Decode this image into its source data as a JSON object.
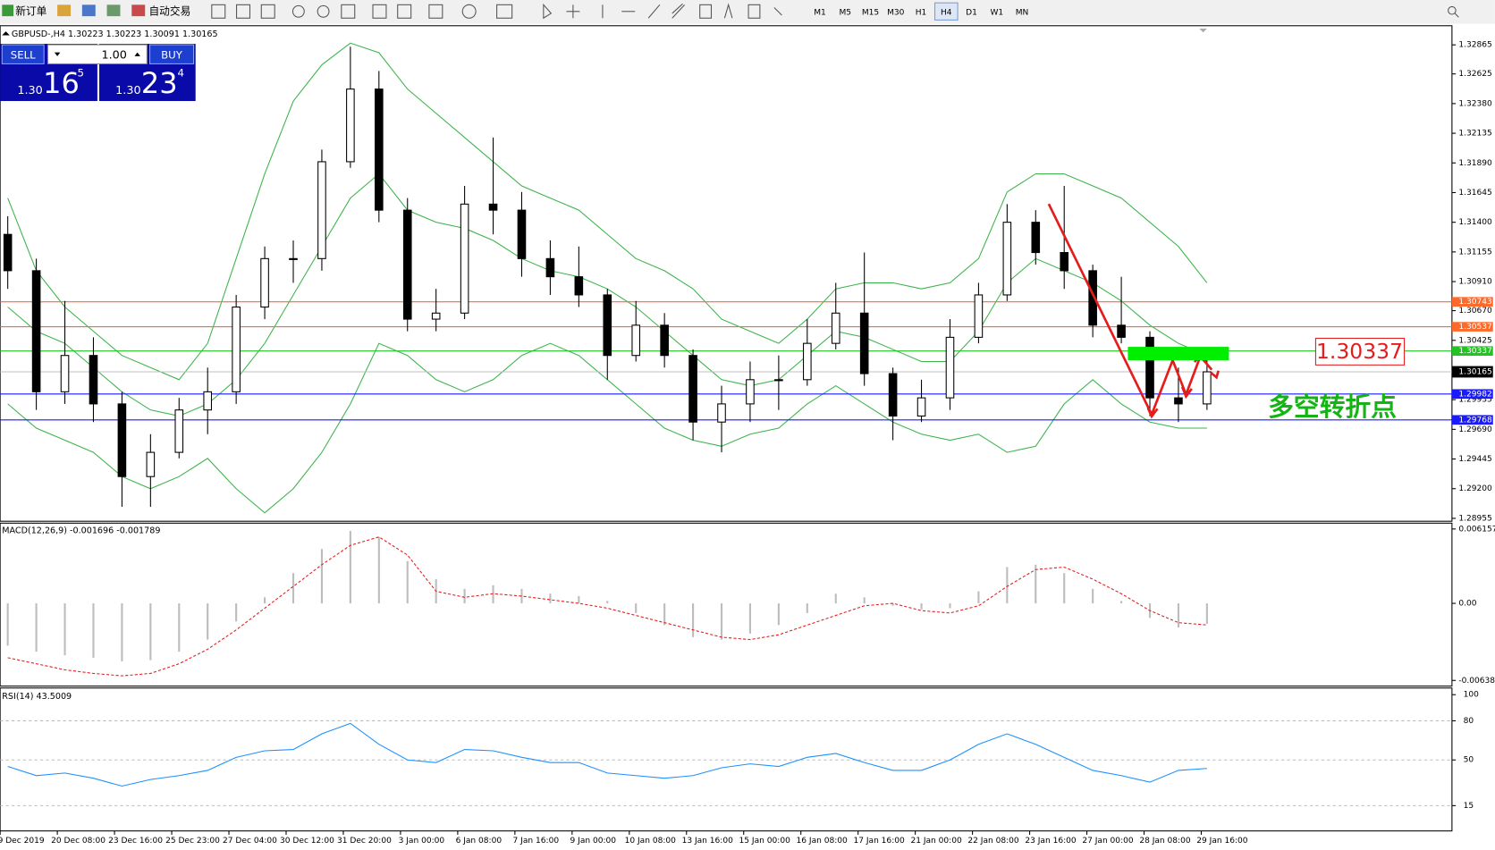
{
  "toolbar": {
    "new_order": "新订单",
    "auto_trade": "自动交易",
    "timeframes": [
      "M1",
      "M5",
      "M15",
      "M30",
      "H1",
      "H4",
      "D1",
      "W1",
      "MN"
    ],
    "selected": "H4"
  },
  "trade_panel": {
    "sell": "SELL",
    "buy": "BUY",
    "lot": "1.00",
    "sell_price": {
      "prefix": "1.30",
      "big": "16",
      "small": "5"
    },
    "buy_price": {
      "prefix": "1.30",
      "big": "23",
      "small": "4"
    }
  },
  "chart": {
    "header": "GBPUSD-,H4  1.30223 1.30223 1.30091 1.30165",
    "ylim": [
      1.28931,
      1.33023
    ],
    "yticks": [
      1.32865,
      1.32625,
      {
        "value": 1.3238,
        "label": "1.32380"
      },
      1.32135,
      {
        "value": 1.3189,
        "label": "1.31890"
      },
      1.31645,
      {
        "value": 1.314,
        "label": "1.31400"
      },
      1.31155,
      {
        "value": 1.3091,
        "label": "1.30910"
      },
      {
        "value": 1.3067,
        "label": "1.30670"
      },
      1.30425,
      1.29935,
      {
        "value": 1.2969,
        "label": "1.29690"
      },
      1.29445,
      {
        "value": 1.292,
        "label": "1.29200"
      },
      1.28955
    ],
    "levels": [
      {
        "value": 1.30743,
        "color": "#ff6a2a"
      },
      {
        "value": 1.30537,
        "color": "#ff6a2a"
      },
      {
        "value": 1.30337,
        "color": "#22c322"
      },
      {
        "value": 1.29982,
        "color": "#1a1aff"
      },
      {
        "value": 1.29768,
        "color": "#1a1aff"
      }
    ],
    "current_price": 1.30165,
    "candles": {
      "open": [
        1.313,
        1.31,
        1.3,
        1.303,
        1.299,
        1.293,
        1.295,
        1.2985,
        1.3,
        1.307,
        1.311,
        1.311,
        1.319,
        1.325,
        1.315,
        1.306,
        1.3065,
        1.3155,
        1.315,
        1.311,
        1.3095,
        1.308,
        1.303,
        1.3055,
        1.303,
        1.2975,
        1.299,
        1.301,
        1.301,
        1.304,
        1.3065,
        1.3015,
        1.298,
        1.2995,
        1.3045,
        1.308,
        1.314,
        1.3115,
        1.31,
        1.3055,
        1.3045,
        1.2995,
        1.299
      ],
      "high": [
        1.3145,
        1.311,
        1.3075,
        1.3045,
        1.3,
        1.2965,
        1.2995,
        1.302,
        1.308,
        1.312,
        1.3125,
        1.32,
        1.3285,
        1.3265,
        1.316,
        1.3085,
        1.317,
        1.321,
        1.3165,
        1.3125,
        1.312,
        1.3085,
        1.3075,
        1.3065,
        1.3035,
        1.3005,
        1.3025,
        1.303,
        1.306,
        1.309,
        1.3115,
        1.302,
        1.301,
        1.306,
        1.309,
        1.3155,
        1.315,
        1.317,
        1.3105,
        1.3095,
        1.305,
        1.302,
        1.303
      ],
      "low": [
        1.3085,
        1.2985,
        1.299,
        1.2975,
        1.2905,
        1.2905,
        1.2945,
        1.2965,
        1.299,
        1.306,
        1.309,
        1.31,
        1.3185,
        1.314,
        1.305,
        1.305,
        1.306,
        1.313,
        1.3095,
        1.308,
        1.307,
        1.301,
        1.3025,
        1.302,
        1.296,
        1.295,
        1.2975,
        1.2985,
        1.3005,
        1.3035,
        1.3005,
        1.296,
        1.2975,
        1.2985,
        1.304,
        1.3075,
        1.3105,
        1.3085,
        1.3045,
        1.304,
        1.298,
        1.2975,
        1.2985
      ],
      "close": [
        1.31,
        1.3,
        1.303,
        1.299,
        1.293,
        1.295,
        1.2985,
        1.3,
        1.307,
        1.311,
        1.311,
        1.319,
        1.325,
        1.315,
        1.306,
        1.3065,
        1.3155,
        1.315,
        1.311,
        1.3095,
        1.308,
        1.303,
        1.3055,
        1.303,
        1.2975,
        1.299,
        1.301,
        1.301,
        1.304,
        1.3065,
        1.3015,
        1.298,
        1.2995,
        1.3045,
        1.308,
        1.314,
        1.3115,
        1.31,
        1.3055,
        1.3045,
        1.2995,
        1.299,
        1.30165
      ]
    },
    "bands": {
      "color": "#3cb44b",
      "upper": [
        1.316,
        1.31,
        1.307,
        1.305,
        1.303,
        1.302,
        1.301,
        1.304,
        1.311,
        1.318,
        1.324,
        1.327,
        1.3288,
        1.328,
        1.325,
        1.323,
        1.321,
        1.319,
        1.317,
        1.316,
        1.315,
        1.313,
        1.311,
        1.31,
        1.3085,
        1.306,
        1.305,
        1.304,
        1.306,
        1.3085,
        1.309,
        1.309,
        1.3085,
        1.309,
        1.311,
        1.3165,
        1.318,
        1.318,
        1.317,
        1.316,
        1.314,
        1.312,
        1.309
      ],
      "middle": [
        1.307,
        1.305,
        1.304,
        1.302,
        1.3,
        1.2985,
        1.298,
        1.299,
        1.301,
        1.304,
        1.308,
        1.312,
        1.316,
        1.318,
        1.315,
        1.314,
        1.3135,
        1.3125,
        1.311,
        1.31,
        1.3095,
        1.3085,
        1.307,
        1.305,
        1.303,
        1.301,
        1.3005,
        1.301,
        1.303,
        1.305,
        1.3045,
        1.3035,
        1.3025,
        1.3025,
        1.305,
        1.309,
        1.311,
        1.31,
        1.309,
        1.3075,
        1.3055,
        1.304,
        1.303
      ],
      "lower": [
        1.299,
        1.297,
        1.296,
        1.295,
        1.293,
        1.292,
        1.293,
        1.2945,
        1.292,
        1.29,
        1.292,
        1.295,
        1.299,
        1.304,
        1.303,
        1.301,
        1.3,
        1.301,
        1.303,
        1.304,
        1.303,
        1.301,
        1.299,
        1.297,
        1.296,
        1.2955,
        1.2965,
        1.297,
        1.299,
        1.3005,
        1.299,
        1.2975,
        1.2965,
        1.296,
        1.2965,
        1.295,
        1.2955,
        1.299,
        1.301,
        1.299,
        1.2975,
        1.297,
        1.297
      ]
    },
    "annotation_price": "1.30337",
    "annotation_text": "多空转折点",
    "time_labels": [
      "9 Dec 2019",
      "20 Dec 08:00",
      "23 Dec 16:00",
      "25 Dec 23:00",
      "27 Dec 04:00",
      "30 Dec 12:00",
      "31 Dec 20:00",
      "3 Jan 00:00",
      "6 Jan 08:00",
      "7 Jan 16:00",
      "9 Jan 00:00",
      "10 Jan 08:00",
      "13 Jan 16:00",
      "15 Jan 00:00",
      "16 Jan 08:00",
      "17 Jan 16:00",
      "21 Jan 00:00",
      "22 Jan 08:00",
      "23 Jan 16:00",
      "27 Jan 00:00",
      "28 Jan 08:00",
      "29 Jan 16:00"
    ]
  },
  "macd": {
    "label": "MACD(12,26,9) -0.001696 -0.001789",
    "ylim": [
      -0.00685,
      0.00664
    ],
    "yticks": [
      0.006157,
      {
        "value": 0,
        "label": "0.00"
      },
      -0.00638
    ],
    "histogram": [
      -0.0035,
      -0.004,
      -0.0043,
      -0.0045,
      -0.0048,
      -0.0047,
      -0.004,
      -0.003,
      -0.0015,
      0.0005,
      0.0025,
      0.0045,
      0.006,
      0.0055,
      0.0035,
      0.002,
      0.0012,
      0.0015,
      0.0012,
      0.0008,
      0.0006,
      0.0002,
      -0.0008,
      -0.0018,
      -0.0028,
      -0.003,
      -0.0025,
      -0.0018,
      -0.0008,
      0.0008,
      0.0005,
      -0.0002,
      -0.0005,
      -0.0004,
      0.001,
      0.003,
      0.0032,
      0.0025,
      0.0012,
      0.0002,
      -0.0012,
      -0.002,
      -0.001696
    ],
    "signal": [
      -0.0045,
      -0.005,
      -0.0055,
      -0.0058,
      -0.006,
      -0.0058,
      -0.005,
      -0.0038,
      -0.0022,
      -0.0004,
      0.0014,
      0.0032,
      0.0048,
      0.0055,
      0.004,
      0.001,
      0.0005,
      0.0008,
      0.0006,
      0.0003,
      0.0,
      -0.0004,
      -0.001,
      -0.0016,
      -0.0022,
      -0.0028,
      -0.003,
      -0.0026,
      -0.0018,
      -0.001,
      -0.0002,
      0.0,
      -0.0006,
      -0.0008,
      -0.0002,
      0.0014,
      0.0028,
      0.003,
      0.002,
      0.0008,
      -0.0006,
      -0.0016,
      -0.001789
    ]
  },
  "rsi": {
    "label": "RSI(14) 43.5009",
    "ylim": [
      0,
      100
    ],
    "yticks": [
      100,
      80,
      50,
      15
    ],
    "levels": [
      80,
      50,
      15
    ],
    "values": [
      45,
      38,
      40,
      36,
      30,
      35,
      38,
      42,
      52,
      57,
      58,
      70,
      78,
      62,
      50,
      48,
      58,
      57,
      52,
      48,
      48,
      40,
      38,
      36,
      38,
      44,
      47,
      45,
      52,
      55,
      48,
      42,
      42,
      50,
      62,
      70,
      62,
      52,
      42,
      38,
      33,
      42,
      43.5009
    ]
  }
}
